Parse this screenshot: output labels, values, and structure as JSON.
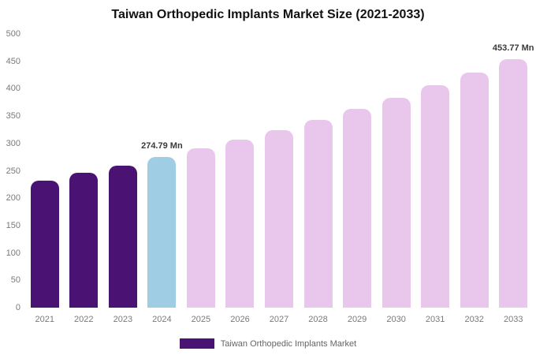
{
  "chart_data": {
    "type": "bar",
    "title": "Taiwan Orthopedic Implants Market Size (2021-2033)",
    "categories": [
      "2021",
      "2022",
      "2023",
      "2024",
      "2025",
      "2026",
      "2027",
      "2028",
      "2029",
      "2030",
      "2031",
      "2032",
      "2033"
    ],
    "values": [
      232.5,
      245.9,
      259.9,
      274.79,
      290.5,
      307.2,
      324.8,
      343.4,
      363.1,
      383.9,
      405.9,
      429.2,
      453.77
    ],
    "bar_colors": [
      "#4a1272",
      "#4a1272",
      "#4a1272",
      "#9fcde4",
      "#e9c6eb",
      "#e9c6eb",
      "#e9c6eb",
      "#e9c6eb",
      "#e9c6eb",
      "#e9c6eb",
      "#e9c6eb",
      "#e9c6eb",
      "#e9c6eb"
    ],
    "annotations": [
      {
        "index": 3,
        "text": "274.79 Mn"
      },
      {
        "index": 12,
        "text": "453.77 Mn"
      }
    ],
    "xlabel": "",
    "ylabel": "",
    "ylim": [
      0,
      500
    ],
    "yticks": [
      0,
      50,
      100,
      150,
      200,
      250,
      300,
      350,
      400,
      450,
      500
    ],
    "grid": false,
    "legend_position": "bottom",
    "legend": [
      {
        "label": "Taiwan Orthopedic Implants Market",
        "color": "#4a1272"
      }
    ]
  }
}
